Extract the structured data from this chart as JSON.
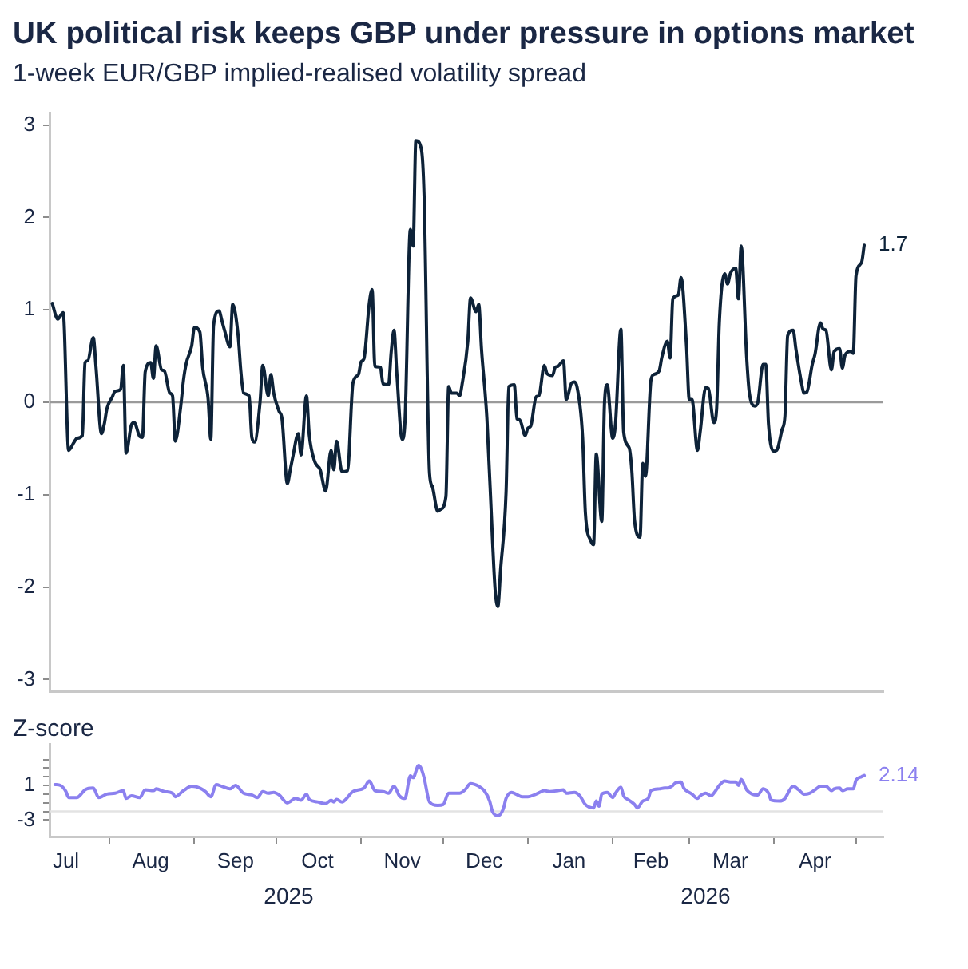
{
  "chart_data": [
    {
      "type": "line",
      "title": "UK political risk keeps GBP under pressure in options market",
      "subtitle": "1-week EUR/GBP implied-realised volatility spread",
      "x": [
        "2025-07-11",
        "2025-07-13",
        "2025-07-15",
        "2025-07-17",
        "2025-07-19",
        "2025-07-20",
        "2025-07-22",
        "2025-07-23",
        "2025-07-24",
        "2025-07-26",
        "2025-07-27",
        "2025-07-29",
        "2025-07-30",
        "2025-07-31",
        "2025-08-02",
        "2025-08-03",
        "2025-08-05",
        "2025-08-06",
        "2025-08-07",
        "2025-08-09",
        "2025-08-10",
        "2025-08-12",
        "2025-08-13",
        "2025-08-14",
        "2025-08-16",
        "2025-08-17",
        "2025-08-18",
        "2025-08-20",
        "2025-08-21",
        "2025-08-23",
        "2025-08-24",
        "2025-08-25",
        "2025-08-27",
        "2025-08-28",
        "2025-08-29",
        "2025-08-31",
        "2025-09-01",
        "2025-09-03",
        "2025-09-04",
        "2025-09-06",
        "2025-09-07",
        "2025-09-08",
        "2025-09-10",
        "2025-09-11",
        "2025-09-12",
        "2025-09-14",
        "2025-09-15",
        "2025-09-17",
        "2025-09-18",
        "2025-09-19",
        "2025-09-21",
        "2025-09-22",
        "2025-09-23",
        "2025-09-25",
        "2025-09-26",
        "2025-09-28",
        "2025-09-29",
        "2025-09-30",
        "2025-10-02",
        "2025-10-03",
        "2025-10-05",
        "2025-10-06",
        "2025-10-07",
        "2025-10-09",
        "2025-10-10",
        "2025-10-12",
        "2025-10-13",
        "2025-10-15",
        "2025-10-17",
        "2025-10-19",
        "2025-10-21",
        "2025-10-22",
        "2025-10-23",
        "2025-10-25",
        "2025-10-27",
        "2025-10-29",
        "2025-10-31",
        "2025-11-01",
        "2025-11-02",
        "2025-11-04",
        "2025-11-05",
        "2025-11-06",
        "2025-11-08",
        "2025-11-09",
        "2025-11-11",
        "2025-11-12",
        "2025-11-13",
        "2025-11-14",
        "2025-11-16",
        "2025-11-17",
        "2025-11-19",
        "2025-11-20",
        "2025-11-21",
        "2025-11-23",
        "2025-11-24",
        "2025-11-26",
        "2025-11-27",
        "2025-11-29",
        "2025-11-30",
        "2025-12-02",
        "2025-12-03",
        "2025-12-04",
        "2025-12-06",
        "2025-12-07",
        "2025-12-08",
        "2025-12-10",
        "2025-12-11",
        "2025-12-13",
        "2025-12-14",
        "2025-12-15",
        "2025-12-17",
        "2025-12-19",
        "2025-12-20",
        "2025-12-21",
        "2025-12-22",
        "2025-12-24",
        "2025-12-25",
        "2025-12-27",
        "2025-12-28",
        "2025-12-29",
        "2025-12-31",
        "2026-01-01",
        "2026-01-02",
        "2026-01-04",
        "2026-01-05",
        "2026-01-07",
        "2026-01-08",
        "2026-01-10",
        "2026-01-11",
        "2026-01-12",
        "2026-01-14",
        "2026-01-15",
        "2026-01-17",
        "2026-01-18",
        "2026-01-19",
        "2026-01-21",
        "2026-01-22",
        "2026-01-24",
        "2026-01-25",
        "2026-01-26",
        "2026-01-28",
        "2026-01-29",
        "2026-01-30",
        "2026-02-01",
        "2026-02-02",
        "2026-02-04",
        "2026-02-05",
        "2026-02-07",
        "2026-02-08",
        "2026-02-09",
        "2026-02-11",
        "2026-02-12",
        "2026-02-13",
        "2026-02-15",
        "2026-02-16",
        "2026-02-18",
        "2026-02-19",
        "2026-02-21",
        "2026-02-22",
        "2026-02-23",
        "2026-02-25",
        "2026-02-26",
        "2026-02-28",
        "2026-03-01",
        "2026-03-02",
        "2026-03-04",
        "2026-03-05",
        "2026-03-07",
        "2026-03-08",
        "2026-03-10",
        "2026-03-11",
        "2026-03-12",
        "2026-03-14",
        "2026-03-15",
        "2026-03-16",
        "2026-03-18",
        "2026-03-19",
        "2026-03-20",
        "2026-03-22",
        "2026-03-23",
        "2026-03-25",
        "2026-03-26",
        "2026-03-28",
        "2026-03-29",
        "2026-03-30",
        "2026-04-01",
        "2026-04-02",
        "2026-04-04",
        "2026-04-05",
        "2026-04-06",
        "2026-04-08",
        "2026-04-09",
        "2026-04-11",
        "2026-04-12",
        "2026-04-13",
        "2026-04-15",
        "2026-04-16",
        "2026-04-18",
        "2026-04-19",
        "2026-04-20",
        "2026-04-22",
        "2026-04-23",
        "2026-04-25",
        "2026-04-26",
        "2026-04-27",
        "2026-04-29",
        "2026-04-30",
        "2026-05-01",
        "2026-05-03",
        "2026-05-04"
      ],
      "series": [
        {
          "color": "#0d2238",
          "values": [
            1.07,
            0.9,
            0.97,
            -0.52,
            -0.43,
            -0.39,
            -0.36,
            0.43,
            0.45,
            0.7,
            0.38,
            -0.34,
            -0.24,
            -0.07,
            0.06,
            0.12,
            0.14,
            0.4,
            -0.55,
            -0.24,
            -0.22,
            -0.37,
            -0.38,
            0.33,
            0.43,
            0.26,
            0.61,
            0.35,
            0.34,
            0.1,
            0.07,
            -0.42,
            -0.04,
            0.24,
            0.42,
            0.61,
            0.81,
            0.76,
            0.38,
            0.04,
            -0.4,
            0.83,
            0.99,
            0.89,
            0.78,
            0.6,
            1.06,
            0.72,
            0.33,
            0.1,
            0.07,
            -0.38,
            -0.43,
            0.0,
            0.4,
            0.07,
            0.3,
            0.1,
            -0.1,
            -0.17,
            -0.88,
            -0.74,
            -0.59,
            -0.34,
            -0.57,
            0.07,
            -0.35,
            -0.64,
            -0.73,
            -0.96,
            -0.52,
            -0.73,
            -0.42,
            -0.75,
            -0.74,
            0.21,
            0.3,
            0.44,
            0.47,
            1.08,
            1.22,
            0.39,
            0.38,
            0.2,
            0.19,
            0.55,
            0.78,
            0.33,
            -0.4,
            -0.22,
            1.87,
            1.69,
            2.83,
            2.74,
            2.24,
            -0.77,
            -0.91,
            -1.18,
            -1.16,
            -1.02,
            0.17,
            0.1,
            0.1,
            0.07,
            0.21,
            0.66,
            1.13,
            0.98,
            1.06,
            0.58,
            -0.18,
            -1.47,
            -2.03,
            -2.21,
            -1.81,
            -0.97,
            0.17,
            0.19,
            -0.18,
            -0.19,
            -0.36,
            -0.28,
            -0.26,
            0.06,
            0.07,
            0.4,
            0.31,
            0.29,
            0.38,
            0.39,
            0.45,
            0.03,
            0.21,
            0.22,
            0.16,
            -0.38,
            -1.19,
            -1.5,
            -1.54,
            -0.56,
            -1.29,
            -0.01,
            0.19,
            -0.39,
            -0.24,
            0.79,
            -0.32,
            -0.49,
            -0.74,
            -1.28,
            -1.46,
            -0.66,
            -0.8,
            0.24,
            0.3,
            0.34,
            0.49,
            0.66,
            0.48,
            1.12,
            1.16,
            1.35,
            0.61,
            0.03,
            0.03,
            -0.52,
            -0.32,
            0.16,
            0.15,
            -0.22,
            -0.08,
            0.86,
            1.39,
            1.28,
            1.39,
            1.45,
            1.12,
            1.69,
            0.49,
            0.1,
            -0.04,
            -0.01,
            0.41,
            0.41,
            -0.24,
            -0.53,
            -0.52,
            -0.29,
            -0.15,
            0.72,
            0.78,
            0.58,
            0.22,
            0.1,
            0.11,
            0.41,
            0.52,
            0.86,
            0.79,
            0.78,
            0.35,
            0.55,
            0.58,
            0.37,
            0.51,
            0.55,
            0.53,
            1.37,
            1.51,
            1.7
          ],
          "value_labels": [
            null,
            null,
            null,
            null,
            null,
            null,
            null,
            null,
            null,
            null,
            null,
            null,
            null,
            null,
            null,
            null,
            null,
            null,
            null,
            null,
            null,
            null,
            null,
            null,
            null,
            null,
            null,
            null,
            null,
            null,
            null,
            null,
            null,
            null,
            null,
            null,
            null,
            null,
            null,
            null,
            null,
            null,
            null,
            null,
            null,
            null,
            null,
            null,
            null,
            null,
            null,
            null,
            null,
            null,
            null,
            null,
            null,
            null,
            null,
            null,
            null,
            null,
            null,
            null,
            null,
            null,
            null,
            null,
            null,
            null,
            null,
            null,
            null,
            null,
            null,
            null,
            null,
            null,
            null,
            null,
            null,
            null,
            null,
            null,
            null,
            null,
            null,
            null,
            null,
            null,
            null,
            null,
            null,
            null,
            null,
            null,
            null,
            null,
            null,
            null,
            null,
            null,
            null,
            null,
            null,
            null,
            null,
            null,
            null,
            null,
            null,
            null,
            null,
            null,
            null,
            null,
            null,
            null,
            null,
            null,
            null,
            null,
            null,
            null,
            null,
            null,
            null,
            null,
            null,
            null,
            null,
            null,
            null,
            null,
            null,
            null,
            null,
            null,
            null,
            null,
            null,
            null,
            null,
            null,
            null,
            null,
            null,
            null,
            null,
            null,
            null,
            null,
            null,
            null,
            null,
            null,
            null,
            null,
            null,
            null,
            null,
            null,
            null,
            null,
            null,
            null,
            null,
            null,
            null,
            null,
            null,
            null,
            null,
            null,
            null,
            null,
            null,
            null,
            null,
            null,
            null,
            null,
            null,
            null,
            null,
            null,
            null,
            null,
            null,
            null,
            null,
            null,
            null,
            null,
            null,
            null,
            null,
            null,
            null,
            null,
            null,
            null,
            null,
            null,
            null,
            null,
            null,
            null,
            null,
            "1.7"
          ]
        }
      ],
      "xlim": [
        "2025-07-10",
        "2026-05-11"
      ],
      "ylim": [
        -3.13,
        3.13
      ],
      "yticks": [
        -3,
        -2,
        -1,
        0,
        1,
        2,
        3
      ],
      "ref_lines": [
        {
          "axis": "y",
          "value": 0,
          "color": "#9a9a9a"
        }
      ],
      "tick_labels": "y"
    },
    {
      "type": "line",
      "title": "Z-score",
      "x": [
        "2025-07-12",
        "2025-07-14",
        "2025-07-16",
        "2025-07-17",
        "2025-07-20",
        "2025-07-21",
        "2025-07-23",
        "2025-07-26",
        "2025-07-28",
        "2025-07-31",
        "2025-08-03",
        "2025-08-06",
        "2025-08-07",
        "2025-08-09",
        "2025-08-12",
        "2025-08-14",
        "2025-08-17",
        "2025-08-18",
        "2025-08-21",
        "2025-08-24",
        "2025-08-25",
        "2025-08-28",
        "2025-08-31",
        "2025-09-03",
        "2025-09-05",
        "2025-09-07",
        "2025-09-09",
        "2025-09-11",
        "2025-09-14",
        "2025-09-16",
        "2025-09-19",
        "2025-09-22",
        "2025-09-24",
        "2025-09-26",
        "2025-09-28",
        "2025-09-30",
        "2025-10-02",
        "2025-10-05",
        "2025-10-08",
        "2025-10-10",
        "2025-10-12",
        "2025-10-13",
        "2025-10-16",
        "2025-10-19",
        "2025-10-21",
        "2025-10-22",
        "2025-10-23",
        "2025-10-25",
        "2025-10-29",
        "2025-11-02",
        "2025-11-04",
        "2025-11-06",
        "2025-11-09",
        "2025-11-11",
        "2025-11-13",
        "2025-11-15",
        "2025-11-17",
        "2025-11-19",
        "2025-11-20",
        "2025-11-22",
        "2025-11-23",
        "2025-11-24",
        "2025-11-26",
        "2025-11-29",
        "2025-12-01",
        "2025-12-03",
        "2025-12-07",
        "2025-12-09",
        "2025-12-11",
        "2025-12-14",
        "2025-12-16",
        "2025-12-18",
        "2025-12-19",
        "2025-12-21",
        "2025-12-23",
        "2025-12-24",
        "2025-12-26",
        "2025-12-27",
        "2025-12-30",
        "2026-01-01",
        "2026-01-04",
        "2026-01-07",
        "2026-01-09",
        "2026-01-12",
        "2026-01-14",
        "2026-01-15",
        "2026-01-18",
        "2026-01-20",
        "2026-01-22",
        "2026-01-25",
        "2026-01-26",
        "2026-01-27",
        "2026-01-28",
        "2026-01-30",
        "2026-02-01",
        "2026-02-02",
        "2026-02-04",
        "2026-02-05",
        "2026-02-07",
        "2026-02-09",
        "2026-02-10",
        "2026-02-12",
        "2026-02-14",
        "2026-02-15",
        "2026-02-18",
        "2026-02-20",
        "2026-02-21",
        "2026-02-23",
        "2026-02-24",
        "2026-02-26",
        "2026-02-27",
        "2026-03-02",
        "2026-03-04",
        "2026-03-05",
        "2026-03-07",
        "2026-03-09",
        "2026-03-10",
        "2026-03-12",
        "2026-03-14",
        "2026-03-16",
        "2026-03-18",
        "2026-03-19",
        "2026-03-20",
        "2026-03-22",
        "2026-03-24",
        "2026-03-26",
        "2026-03-28",
        "2026-03-30",
        "2026-03-31",
        "2026-04-03",
        "2026-04-05",
        "2026-04-07",
        "2026-04-08",
        "2026-04-10",
        "2026-04-12",
        "2026-04-14",
        "2026-04-16",
        "2026-04-18",
        "2026-04-20",
        "2026-04-22",
        "2026-04-23",
        "2026-04-25",
        "2026-04-26",
        "2026-04-28",
        "2026-04-30",
        "2026-05-01",
        "2026-05-03",
        "2026-05-04"
      ],
      "series": [
        {
          "color": "#8b80ef",
          "values": [
            1.1,
            1.0,
            0.3,
            -0.4,
            -0.4,
            -0.2,
            0.5,
            0.7,
            -0.4,
            0.0,
            0.1,
            0.4,
            -0.5,
            -0.2,
            -0.4,
            0.5,
            0.4,
            0.6,
            0.3,
            0.1,
            -0.3,
            0.4,
            0.9,
            0.7,
            0.3,
            -0.3,
            1.1,
            0.9,
            0.6,
            1.0,
            0.1,
            -0.1,
            -0.4,
            0.3,
            0.1,
            0.2,
            -0.1,
            -1.0,
            -0.5,
            -0.7,
            0.0,
            -0.6,
            -0.9,
            -1.1,
            -0.7,
            -0.9,
            -0.6,
            -0.9,
            0.3,
            0.7,
            1.5,
            0.4,
            0.3,
            0.1,
            0.9,
            -0.2,
            -0.5,
            2.1,
            1.9,
            3.3,
            2.9,
            1.9,
            -0.9,
            -1.3,
            -1.2,
            0.1,
            0.1,
            0.5,
            1.2,
            0.9,
            0.4,
            -0.8,
            -2.0,
            -2.5,
            -1.7,
            -0.5,
            0.2,
            0.1,
            -0.3,
            -0.3,
            0.0,
            0.4,
            0.3,
            0.4,
            0.5,
            0.1,
            0.2,
            -0.2,
            -1.2,
            -1.6,
            -0.8,
            -1.4,
            0.0,
            0.2,
            -0.4,
            0.1,
            0.8,
            -0.2,
            -0.7,
            -1.2,
            -1.6,
            -0.8,
            -0.5,
            0.4,
            0.6,
            0.7,
            0.7,
            1.0,
            1.3,
            1.4,
            0.7,
            0.0,
            -0.5,
            -0.2,
            0.1,
            -0.2,
            0.1,
            1.0,
            1.5,
            1.4,
            1.4,
            1.0,
            1.7,
            0.5,
            0.0,
            -0.1,
            0.6,
            0.1,
            -0.7,
            -0.8,
            -0.5,
            0.6,
            0.9,
            0.5,
            0.0,
            0.1,
            0.5,
            0.9,
            0.9,
            0.4,
            0.6,
            0.7,
            0.4,
            0.6,
            0.6,
            1.6,
            2.0,
            2.14
          ],
          "value_labels": [
            null,
            null,
            null,
            null,
            null,
            null,
            null,
            null,
            null,
            null,
            null,
            null,
            null,
            null,
            null,
            null,
            null,
            null,
            null,
            null,
            null,
            null,
            null,
            null,
            null,
            null,
            null,
            null,
            null,
            null,
            null,
            null,
            null,
            null,
            null,
            null,
            null,
            null,
            null,
            null,
            null,
            null,
            null,
            null,
            null,
            null,
            null,
            null,
            null,
            null,
            null,
            null,
            null,
            null,
            null,
            null,
            null,
            null,
            null,
            null,
            null,
            null,
            null,
            null,
            null,
            null,
            null,
            null,
            null,
            null,
            null,
            null,
            null,
            null,
            null,
            null,
            null,
            null,
            null,
            null,
            null,
            null,
            null,
            null,
            null,
            null,
            null,
            null,
            null,
            null,
            null,
            null,
            null,
            null,
            null,
            null,
            null,
            null,
            null,
            null,
            null,
            null,
            null,
            null,
            null,
            null,
            null,
            null,
            null,
            null,
            null,
            null,
            null,
            null,
            null,
            null,
            null,
            null,
            null,
            null,
            null,
            null,
            null,
            null,
            null,
            null,
            null,
            null,
            null,
            null,
            null,
            null,
            null,
            null,
            null,
            null,
            null,
            null,
            null,
            null,
            null,
            null,
            null,
            null,
            null,
            null,
            null,
            "2.14"
          ]
        }
      ],
      "xlim": [
        "2025-07-10",
        "2026-05-11"
      ],
      "xticks": [
        {
          "value": "2025-07-16",
          "label": "Jul"
        },
        {
          "value": "2025-08-01",
          "label": null
        },
        {
          "value": "2025-08-16",
          "label": "Aug"
        },
        {
          "value": "2025-09-01",
          "label": null
        },
        {
          "value": "2025-09-16",
          "label": "Sep"
        },
        {
          "value": "2025-10-01",
          "label": null
        },
        {
          "value": "2025-10-16",
          "label": "Oct"
        },
        {
          "value": "2025-11-01",
          "label": null
        },
        {
          "value": "2025-11-16",
          "label": "Nov"
        },
        {
          "value": "2025-12-01",
          "label": null
        },
        {
          "value": "2025-12-16",
          "label": "Dec"
        },
        {
          "value": "2026-01-01",
          "label": null
        },
        {
          "value": "2026-01-16",
          "label": "Jan"
        },
        {
          "value": "2026-02-01",
          "label": null
        },
        {
          "value": "2026-02-15",
          "label": "Feb"
        },
        {
          "value": "2026-03-01",
          "label": null
        },
        {
          "value": "2026-03-16",
          "label": "Mar"
        },
        {
          "value": "2026-04-01",
          "label": null
        },
        {
          "value": "2026-04-16",
          "label": "Apr"
        },
        {
          "value": "2026-05-01",
          "label": null
        }
      ],
      "ylim": [
        -4.9,
        5.8
      ],
      "yticks": [
        -3,
        {
          "value": -2,
          "label": null
        },
        {
          "value": -1,
          "label": null
        },
        {
          "value": 0,
          "label": null
        },
        1,
        {
          "value": 2,
          "label": null
        },
        {
          "value": 3,
          "label": null
        },
        {
          "value": 4,
          "label": null
        }
      ],
      "ref_lines": [
        {
          "axis": "y",
          "value": -2,
          "color": "#e3e3e3"
        }
      ],
      "annotations": [
        "2025",
        "2026"
      ]
    }
  ]
}
